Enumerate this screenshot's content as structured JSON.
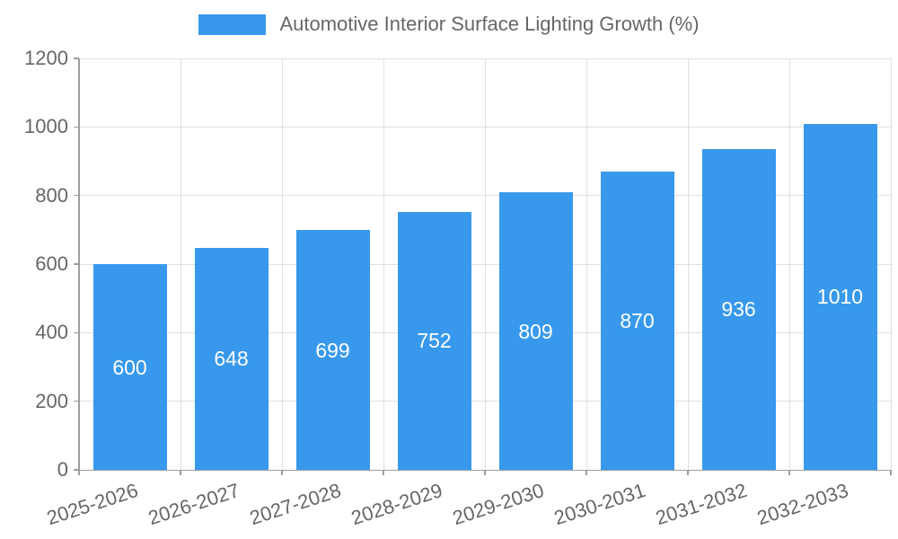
{
  "chart_data": {
    "type": "bar",
    "title": "Automotive Interior Surface Lighting Growth (%)",
    "categories": [
      "2025-2026",
      "2026-2027",
      "2027-2028",
      "2028-2029",
      "2029-2030",
      "2030-2031",
      "2031-2032",
      "2032-2033"
    ],
    "values": [
      600,
      648,
      699,
      752,
      809,
      870,
      936,
      1010
    ],
    "xlabel": "",
    "ylabel": "",
    "ylim": [
      0,
      1200
    ],
    "yticks": [
      0,
      200,
      400,
      600,
      800,
      1000,
      1200
    ],
    "grid": true,
    "legend_position": "top",
    "bar_labels_inside": true,
    "colors": {
      "bar": "#3899ec",
      "value_label": "#ffffff",
      "axis_text": "#666666",
      "grid_line": "#e0e0e0",
      "axis_line": "#9e9e9e",
      "background": "#ffffff"
    }
  }
}
